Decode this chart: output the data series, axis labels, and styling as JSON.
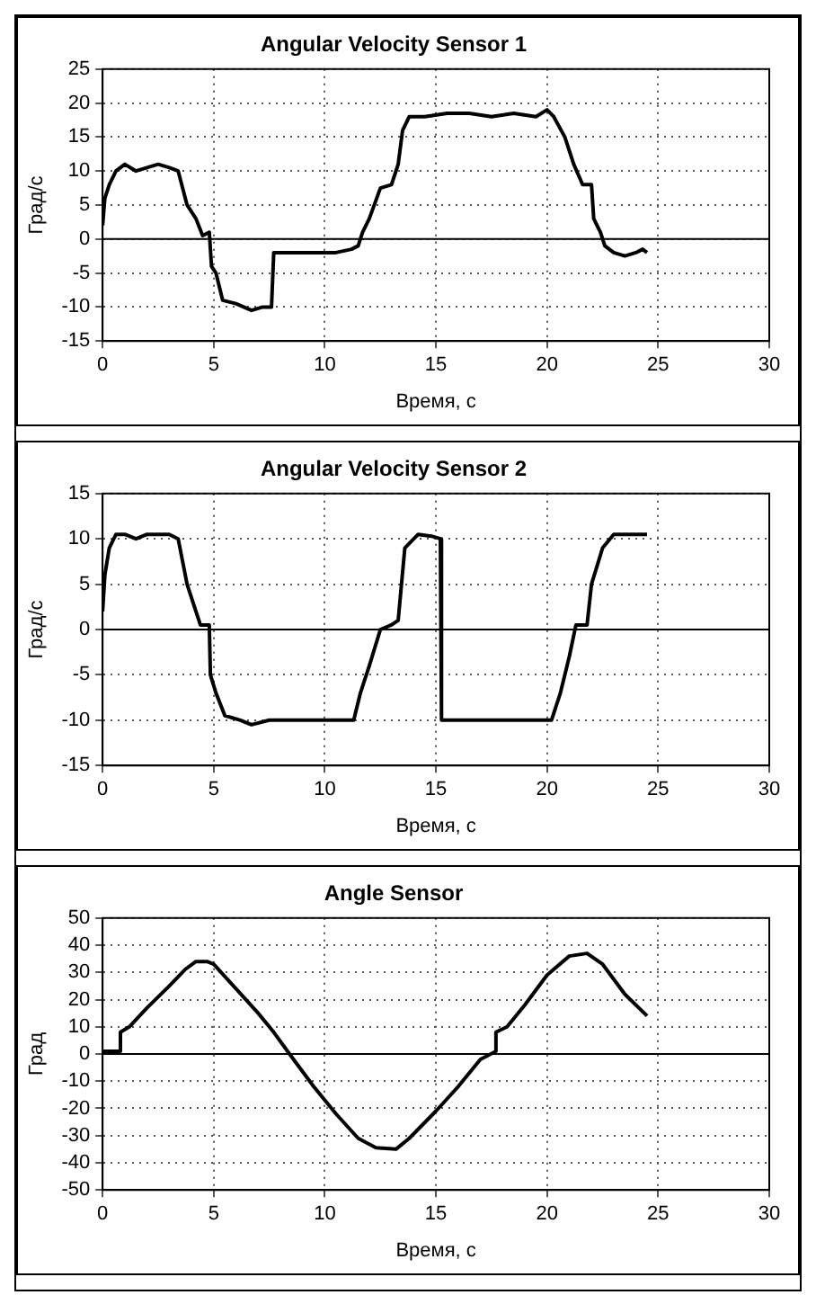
{
  "chart_data": [
    {
      "type": "line",
      "title": "Angular Velocity Sensor 1",
      "xlabel": "Время, с",
      "ylabel": "Град/с",
      "grid": true,
      "marker": "none",
      "line_style": "solid",
      "x": [
        0,
        0.1,
        0.3,
        0.6,
        1,
        1.5,
        2,
        2.5,
        3,
        3.4,
        3.8,
        4.2,
        4.5,
        4.8,
        4.9,
        5.1,
        5.4,
        6,
        6.7,
        7.2,
        7.6,
        7.7,
        8.5,
        9.5,
        10.5,
        11.2,
        11.5,
        11.7,
        12,
        12.5,
        13,
        13.3,
        13.5,
        13.8,
        14.5,
        15.5,
        16.5,
        17.5,
        18.5,
        19.5,
        20,
        20.3,
        20.8,
        21.2,
        21.6,
        22,
        22.1,
        22.4,
        22.6,
        23,
        23.5,
        24,
        24.3,
        24.5
      ],
      "series": [
        {
          "color": "#000000",
          "values": [
            2,
            6,
            8,
            10,
            11,
            10,
            10.5,
            11,
            10.5,
            10,
            5,
            3,
            0.5,
            1,
            -4,
            -5,
            -9,
            -9.5,
            -10.5,
            -10,
            -10,
            -2,
            -2,
            -2,
            -2,
            -1.5,
            -1,
            1,
            3,
            7.5,
            8,
            11,
            16,
            18,
            18,
            18.5,
            18.5,
            18,
            18.5,
            18,
            19,
            18,
            15,
            11,
            8,
            8,
            3,
            1,
            -1,
            -2,
            -2.5,
            -2,
            -1.5,
            -2
          ]
        }
      ],
      "xlim": [
        0,
        30
      ],
      "xticks": [
        0,
        5,
        10,
        15,
        20,
        25,
        30
      ],
      "ylim": [
        -15,
        25
      ],
      "yticks": [
        -15,
        -10,
        -5,
        0,
        5,
        10,
        15,
        20,
        25
      ],
      "ref_lines": [
        {
          "axis": "y",
          "value": 0,
          "color": "#000000"
        }
      ]
    },
    {
      "type": "line",
      "title": "Angular Velocity Sensor 2",
      "xlabel": "Время, с",
      "ylabel": "Град/с",
      "grid": true,
      "marker": "none",
      "line_style": "solid",
      "x": [
        0,
        0.1,
        0.3,
        0.6,
        1,
        1.5,
        2,
        2.5,
        3,
        3.4,
        3.8,
        4.2,
        4.4,
        4.8,
        4.85,
        5.1,
        5.5,
        6.2,
        6.7,
        7.5,
        8.5,
        9.5,
        10.5,
        11.3,
        11.6,
        12,
        12.5,
        13,
        13.3,
        13.6,
        14.2,
        14.8,
        15.2,
        15.25,
        16,
        17,
        18,
        19,
        20.2,
        20.6,
        21,
        21.3,
        21.8,
        22,
        22.5,
        23,
        24,
        24.5
      ],
      "series": [
        {
          "color": "#000000",
          "values": [
            2,
            6,
            9,
            10.5,
            10.5,
            10,
            10.5,
            10.5,
            10.5,
            10,
            5,
            2,
            0.5,
            0.5,
            -5,
            -7,
            -9.5,
            -10,
            -10.5,
            -10,
            -10,
            -10,
            -10,
            -10,
            -7,
            -4,
            0,
            0.5,
            1,
            9,
            10.5,
            10.3,
            10,
            -10,
            -10,
            -10,
            -10,
            -10,
            -10,
            -7,
            -3,
            0.5,
            0.5,
            5,
            9,
            10.5,
            10.5,
            10.5
          ]
        }
      ],
      "xlim": [
        0,
        30
      ],
      "xticks": [
        0,
        5,
        10,
        15,
        20,
        25,
        30
      ],
      "ylim": [
        -15,
        15
      ],
      "yticks": [
        -15,
        -10,
        -5,
        0,
        5,
        10,
        15
      ],
      "ref_lines": [
        {
          "axis": "y",
          "value": 0,
          "color": "#000000"
        }
      ]
    },
    {
      "type": "line",
      "title": "Angle Sensor",
      "xlabel": "Время, с",
      "ylabel": "Град",
      "grid": true,
      "marker": "none",
      "line_style": "solid",
      "x": [
        0,
        0.8,
        0.8,
        1.2,
        2,
        3,
        3.7,
        4.2,
        4.7,
        5,
        6,
        7,
        7.7,
        8.5,
        9.5,
        10.5,
        11.5,
        12.3,
        13.2,
        13.8,
        15,
        16,
        17,
        17.7,
        17.7,
        18.2,
        19,
        20,
        21,
        21.8,
        22.5,
        23.5,
        24.5
      ],
      "series": [
        {
          "color": "#000000",
          "values": [
            1,
            1,
            8,
            10,
            17,
            25,
            31,
            34,
            34,
            33,
            24,
            15,
            8,
            -1,
            -12,
            -22,
            -31,
            -34.5,
            -35,
            -31,
            -21,
            -12,
            -2,
            1,
            8,
            10,
            18,
            29,
            36,
            37,
            33,
            22,
            14
          ]
        }
      ],
      "xlim": [
        0,
        30
      ],
      "xticks": [
        0,
        5,
        10,
        15,
        20,
        25,
        30
      ],
      "ylim": [
        -50,
        50
      ],
      "yticks": [
        -50,
        -40,
        -30,
        -20,
        -10,
        0,
        10,
        20,
        30,
        40,
        50
      ],
      "ref_lines": [
        {
          "axis": "y",
          "value": 0,
          "color": "#000000"
        }
      ]
    }
  ]
}
